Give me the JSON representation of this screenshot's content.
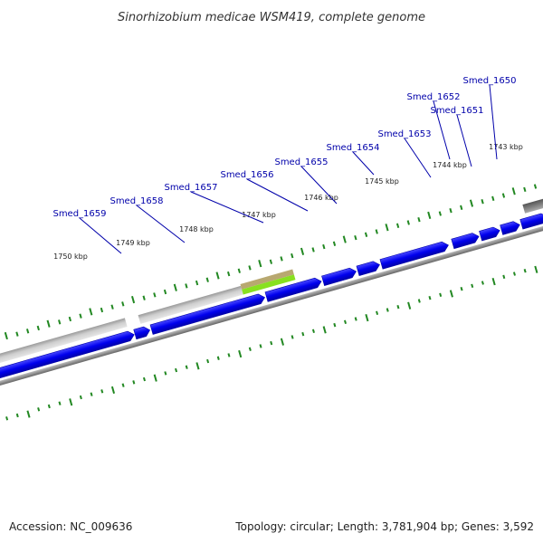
{
  "title": "Sinorhizobium medicae WSM419, complete genome",
  "footer": {
    "accession": "Accession: NC_009636",
    "summary": "Topology: circular; Length: 3,781,904 bp; Genes: 3,592"
  },
  "gene_labels": [
    "Smed_1650",
    "Smed_1652",
    "Smed_1651",
    "Smed_1653",
    "Smed_1654",
    "Smed_1655",
    "Smed_1656",
    "Smed_1657",
    "Smed_1658",
    "Smed_1659"
  ],
  "kbp_labels": [
    "1743 kbp",
    "1744 kbp",
    "1745 kbp",
    "1746 kbp",
    "1747 kbp",
    "1748 kbp",
    "1749 kbp",
    "1750 kbp"
  ],
  "colors": {
    "gene_forward": "#0000ee",
    "gene_label": "#0000aa",
    "tick": "#228822",
    "backbone": "#888888",
    "grey_feature": "#c8c8c8",
    "highlight_top": "#b8a870",
    "highlight_bottom": "#88e020"
  }
}
